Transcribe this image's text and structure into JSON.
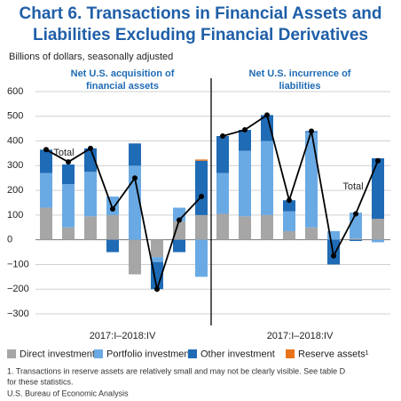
{
  "chart_data": [
    {
      "type": "bar",
      "stacked": true,
      "title": [
        "Chart 6. Transactions in Financial Assets and",
        "Liabilities Excluding Financial Derivatives"
      ],
      "y_label": "Billions of dollars, seasonally adjusted",
      "panel_title": [
        "Net U.S. acquisition of",
        "financial assets"
      ],
      "x_label": "2017:I–2018:IV",
      "ylim": [
        -300,
        600
      ],
      "yticks": [
        600,
        500,
        400,
        300,
        200,
        100,
        0,
        {
          "value": -100,
          "label": "−100"
        },
        {
          "value": -200,
          "label": "−200"
        },
        {
          "value": -300,
          "label": "−300"
        }
      ],
      "grid": true,
      "series": [
        {
          "name": "Direct investment",
          "color": "#a6a6a6",
          "values": [
            130,
            50,
            95,
            100,
            -140,
            -70,
            75,
            100
          ]
        },
        {
          "name": "Portfolio investment",
          "color": "#6aaae4",
          "values": [
            140,
            175,
            180,
            75,
            300,
            -20,
            55,
            -150
          ]
        },
        {
          "name": "Other investment",
          "color": "#1f6bb5",
          "values": [
            95,
            80,
            95,
            -50,
            90,
            -110,
            -50,
            220
          ]
        },
        {
          "name": "Reserve assets¹",
          "color": "#e8731a",
          "values": [
            0,
            0,
            0,
            0,
            0,
            0,
            0,
            5
          ]
        },
        {
          "name": "Total",
          "type": "line",
          "color": "#000000",
          "values": [
            365,
            315,
            370,
            125,
            250,
            -200,
            80,
            175
          ]
        }
      ]
    },
    {
      "type": "bar",
      "stacked": true,
      "panel_title": [
        "Net U.S. incurrence of",
        "liabilities"
      ],
      "x_label": "2017:I–2018:IV",
      "ylim": [
        -300,
        600
      ],
      "series": [
        {
          "name": "Direct investment",
          "color": "#a6a6a6",
          "values": [
            105,
            95,
            100,
            35,
            50,
            0,
            5,
            85
          ]
        },
        {
          "name": "Portfolio investment",
          "color": "#6aaae4",
          "values": [
            165,
            265,
            300,
            80,
            385,
            35,
            105,
            -10
          ]
        },
        {
          "name": "Other investment",
          "color": "#1f6bb5",
          "values": [
            150,
            85,
            105,
            45,
            5,
            -100,
            -5,
            245
          ]
        },
        {
          "name": "Total",
          "type": "line",
          "color": "#000000",
          "values": [
            420,
            445,
            505,
            160,
            440,
            -65,
            105,
            320
          ]
        }
      ]
    }
  ],
  "footnote": [
    "1. Transactions in reserve assets are relatively small and may not be clearly visible. See table D",
    "for these statistics."
  ],
  "source": "U.S. Bureau of Economic Analysis"
}
